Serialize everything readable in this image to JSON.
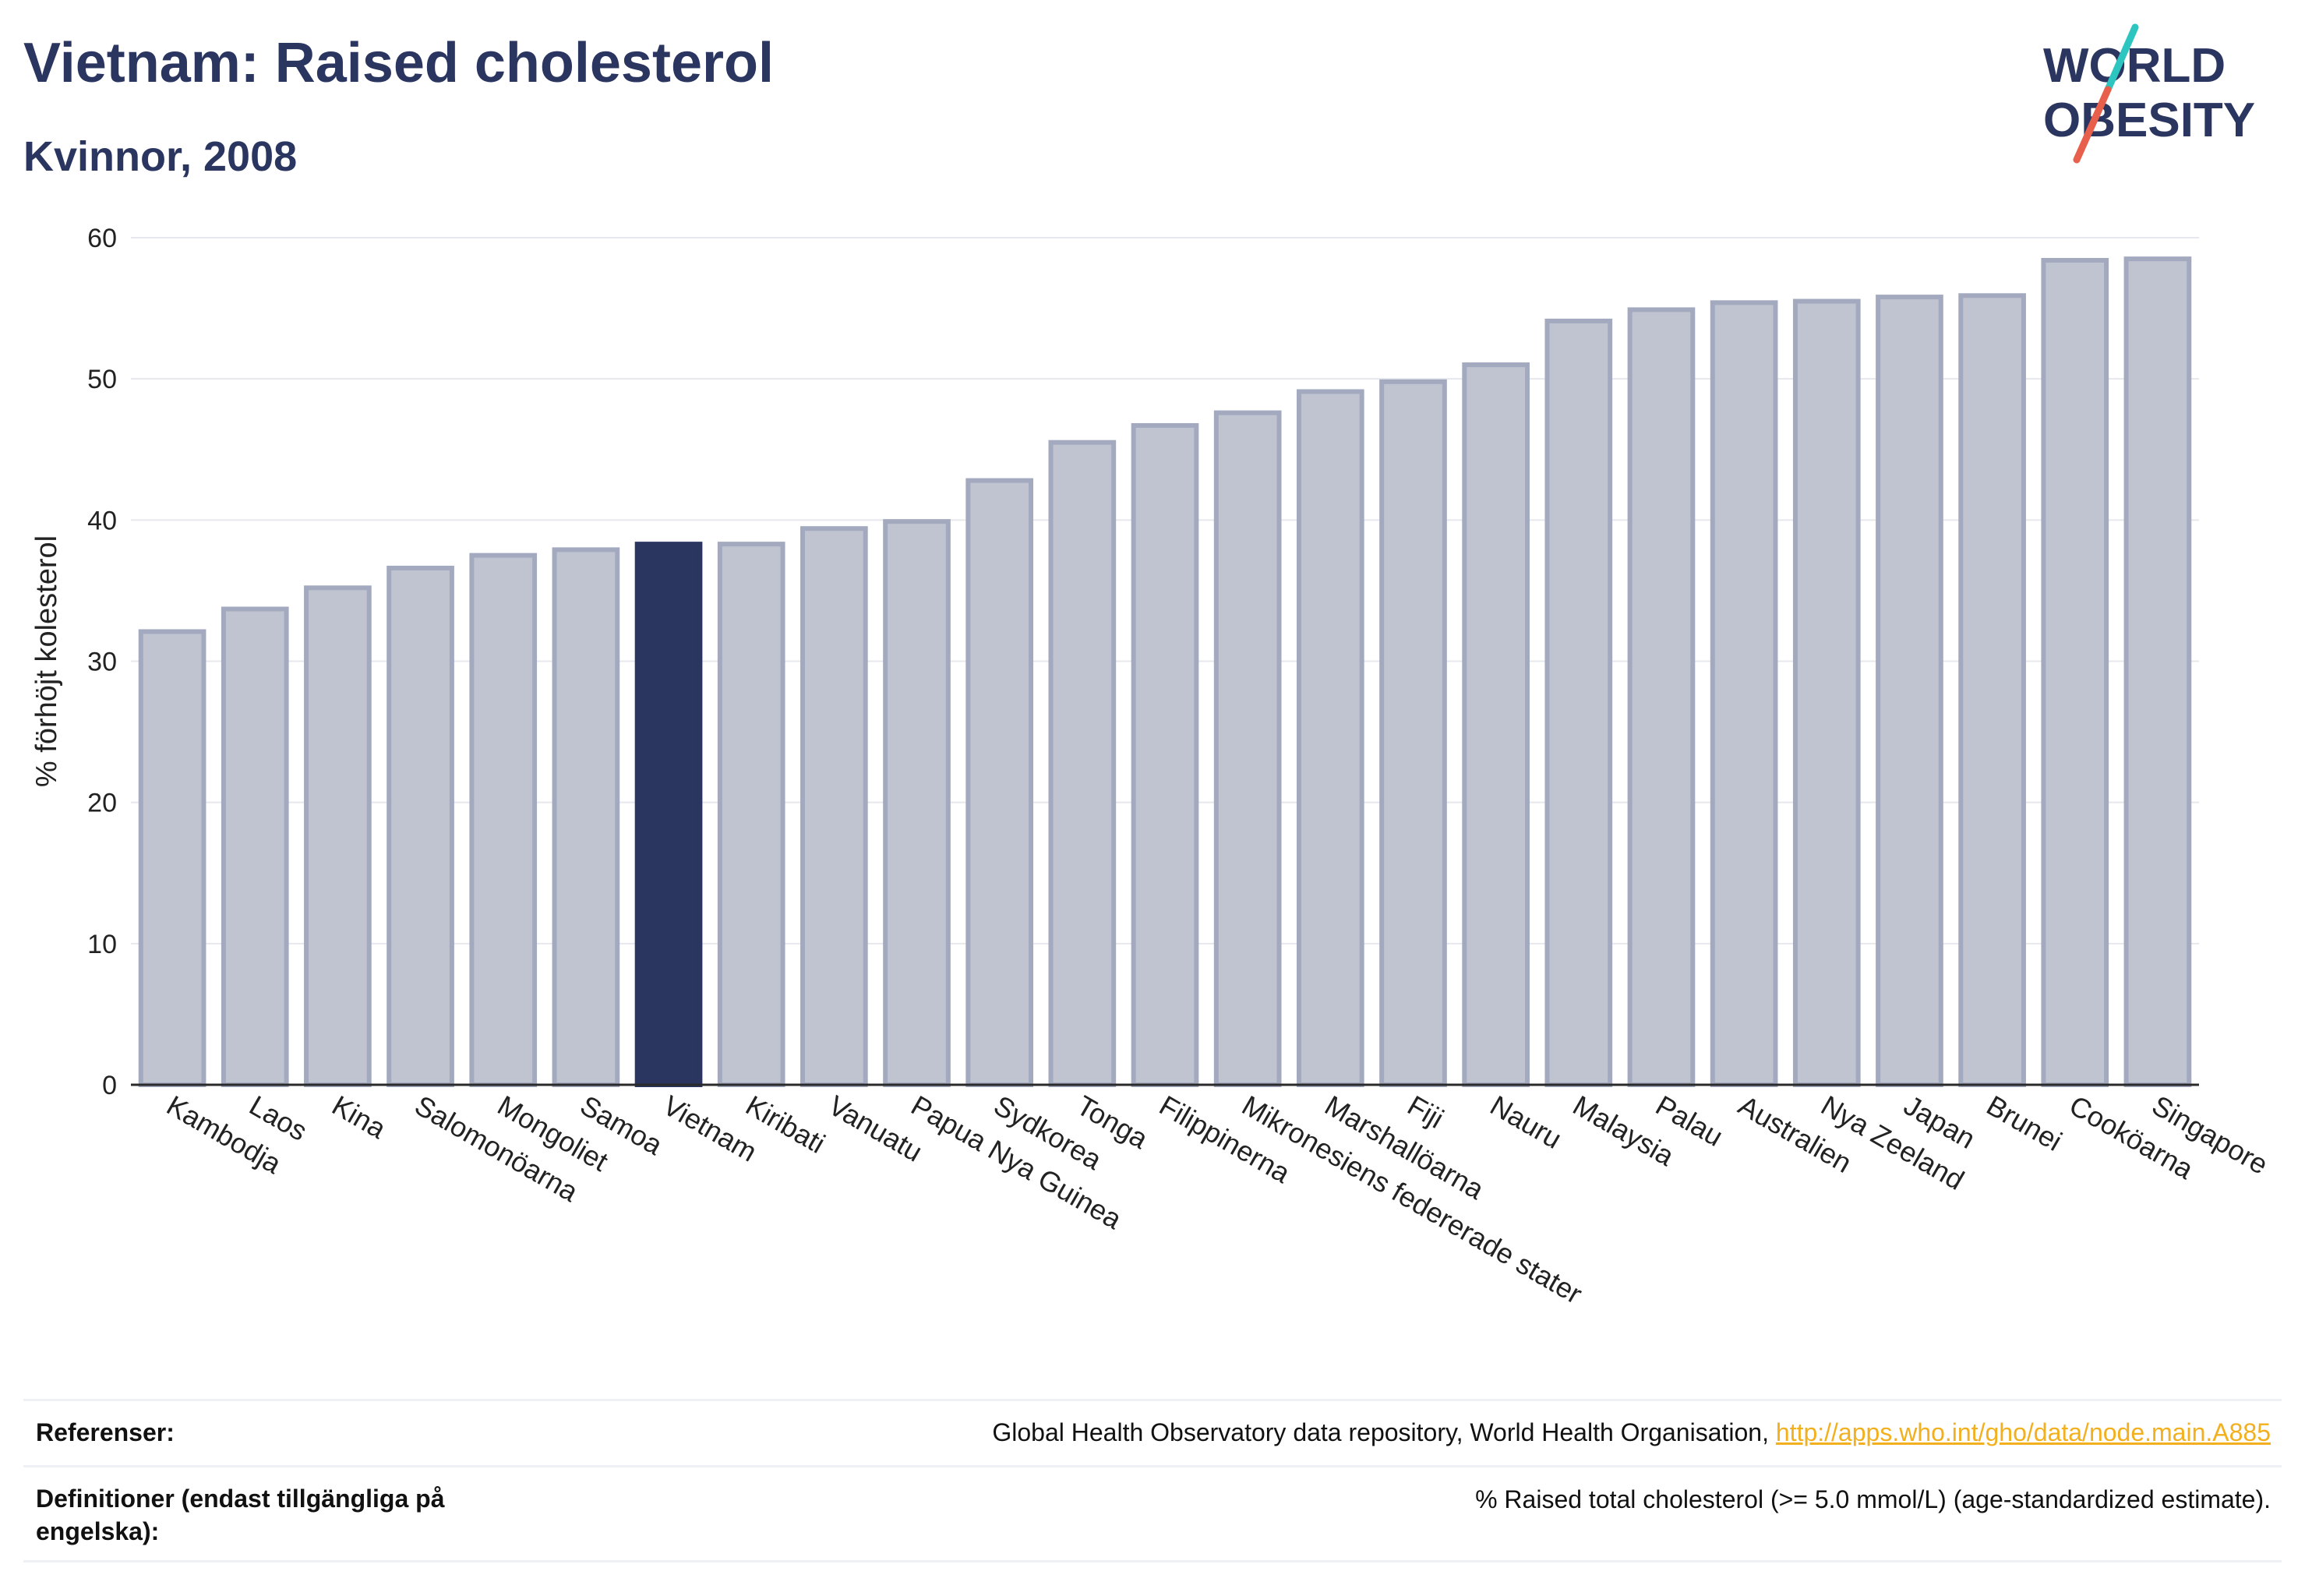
{
  "header": {
    "title": "Vietnam: Raised cholesterol",
    "subtitle": "Kvinnor, 2008"
  },
  "logo": {
    "line1": "WORLD",
    "line2": "OBESITY",
    "color": "#2a3560",
    "accent_teal": "#2cc5c0",
    "accent_coral": "#e8604c"
  },
  "chart_data": {
    "type": "bar",
    "title": "Vietnam: Raised cholesterol",
    "subtitle": "Kvinnor, 2008",
    "xlabel": "",
    "ylabel": "% förhöjt kolesterol",
    "ylim": [
      0,
      60
    ],
    "yticks": [
      0,
      10,
      20,
      30,
      40,
      50,
      60
    ],
    "grid": true,
    "highlight": "Vietnam",
    "colors": {
      "bar": "#c0c4d0",
      "bar_border": "#a3aabf",
      "highlight": "#2a3560"
    },
    "categories": [
      "Kambodja",
      "Laos",
      "Kina",
      "Salomonöarna",
      "Mongoliet",
      "Samoa",
      "Vietnam",
      "Kiribati",
      "Vanuatu",
      "Papua Nya Guinea",
      "Sydkorea",
      "Tonga",
      "Filippinerna",
      "Mikronesiens federerade stater",
      "Marshallöarna",
      "Fiji",
      "Nauru",
      "Malaysia",
      "Palau",
      "Australien",
      "Nya Zeeland",
      "Japan",
      "Brunei",
      "Cooköarna",
      "Singapore"
    ],
    "values": [
      32.1,
      33.7,
      35.2,
      36.6,
      37.5,
      37.9,
      38.3,
      38.3,
      39.4,
      39.9,
      42.8,
      45.5,
      46.7,
      47.6,
      49.1,
      49.8,
      51.0,
      54.1,
      54.9,
      55.4,
      55.5,
      55.8,
      55.9,
      58.4,
      58.5
    ]
  },
  "footer": {
    "references_label": "Referenser:",
    "references_text": "Global Health Observatory data repository, World Health Organisation, ",
    "references_link": "http://apps.who.int/gho/data/node.main.A885",
    "definitions_label": "Definitioner (endast tillgängliga på engelska):",
    "definitions_text": "% Raised total cholesterol (>= 5.0 mmol/L) (age-standardized estimate)."
  }
}
